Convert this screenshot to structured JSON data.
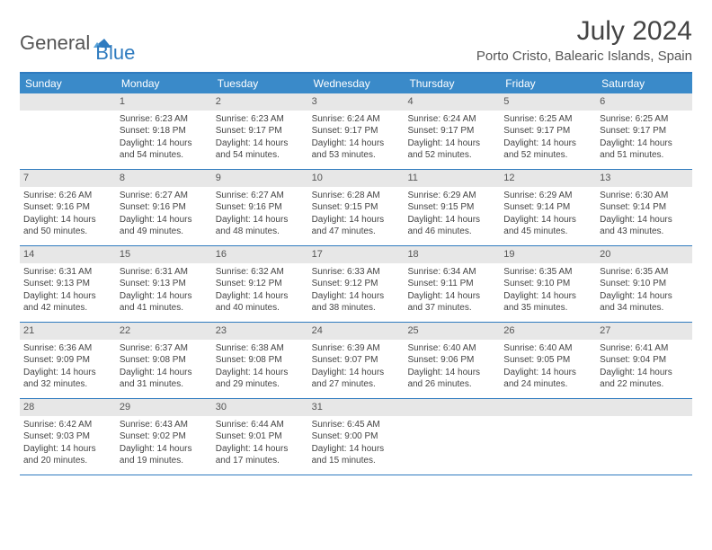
{
  "brand": {
    "word1": "General",
    "word2": "Blue"
  },
  "title": "July 2024",
  "location": "Porto Cristo, Balearic Islands, Spain",
  "colors": {
    "header_bar": "#3a8ac9",
    "border": "#2f7bbf",
    "daynum_bg": "#e7e7e7",
    "text": "#444444",
    "brand_gray": "#555555",
    "brand_blue": "#2f7bbf"
  },
  "day_headers": [
    "Sunday",
    "Monday",
    "Tuesday",
    "Wednesday",
    "Thursday",
    "Friday",
    "Saturday"
  ],
  "weeks": [
    [
      {
        "n": "",
        "sunrise": "",
        "sunset": "",
        "daylight": ""
      },
      {
        "n": "1",
        "sunrise": "6:23 AM",
        "sunset": "9:18 PM",
        "daylight": "14 hours and 54 minutes."
      },
      {
        "n": "2",
        "sunrise": "6:23 AM",
        "sunset": "9:17 PM",
        "daylight": "14 hours and 54 minutes."
      },
      {
        "n": "3",
        "sunrise": "6:24 AM",
        "sunset": "9:17 PM",
        "daylight": "14 hours and 53 minutes."
      },
      {
        "n": "4",
        "sunrise": "6:24 AM",
        "sunset": "9:17 PM",
        "daylight": "14 hours and 52 minutes."
      },
      {
        "n": "5",
        "sunrise": "6:25 AM",
        "sunset": "9:17 PM",
        "daylight": "14 hours and 52 minutes."
      },
      {
        "n": "6",
        "sunrise": "6:25 AM",
        "sunset": "9:17 PM",
        "daylight": "14 hours and 51 minutes."
      }
    ],
    [
      {
        "n": "7",
        "sunrise": "6:26 AM",
        "sunset": "9:16 PM",
        "daylight": "14 hours and 50 minutes."
      },
      {
        "n": "8",
        "sunrise": "6:27 AM",
        "sunset": "9:16 PM",
        "daylight": "14 hours and 49 minutes."
      },
      {
        "n": "9",
        "sunrise": "6:27 AM",
        "sunset": "9:16 PM",
        "daylight": "14 hours and 48 minutes."
      },
      {
        "n": "10",
        "sunrise": "6:28 AM",
        "sunset": "9:15 PM",
        "daylight": "14 hours and 47 minutes."
      },
      {
        "n": "11",
        "sunrise": "6:29 AM",
        "sunset": "9:15 PM",
        "daylight": "14 hours and 46 minutes."
      },
      {
        "n": "12",
        "sunrise": "6:29 AM",
        "sunset": "9:14 PM",
        "daylight": "14 hours and 45 minutes."
      },
      {
        "n": "13",
        "sunrise": "6:30 AM",
        "sunset": "9:14 PM",
        "daylight": "14 hours and 43 minutes."
      }
    ],
    [
      {
        "n": "14",
        "sunrise": "6:31 AM",
        "sunset": "9:13 PM",
        "daylight": "14 hours and 42 minutes."
      },
      {
        "n": "15",
        "sunrise": "6:31 AM",
        "sunset": "9:13 PM",
        "daylight": "14 hours and 41 minutes."
      },
      {
        "n": "16",
        "sunrise": "6:32 AM",
        "sunset": "9:12 PM",
        "daylight": "14 hours and 40 minutes."
      },
      {
        "n": "17",
        "sunrise": "6:33 AM",
        "sunset": "9:12 PM",
        "daylight": "14 hours and 38 minutes."
      },
      {
        "n": "18",
        "sunrise": "6:34 AM",
        "sunset": "9:11 PM",
        "daylight": "14 hours and 37 minutes."
      },
      {
        "n": "19",
        "sunrise": "6:35 AM",
        "sunset": "9:10 PM",
        "daylight": "14 hours and 35 minutes."
      },
      {
        "n": "20",
        "sunrise": "6:35 AM",
        "sunset": "9:10 PM",
        "daylight": "14 hours and 34 minutes."
      }
    ],
    [
      {
        "n": "21",
        "sunrise": "6:36 AM",
        "sunset": "9:09 PM",
        "daylight": "14 hours and 32 minutes."
      },
      {
        "n": "22",
        "sunrise": "6:37 AM",
        "sunset": "9:08 PM",
        "daylight": "14 hours and 31 minutes."
      },
      {
        "n": "23",
        "sunrise": "6:38 AM",
        "sunset": "9:08 PM",
        "daylight": "14 hours and 29 minutes."
      },
      {
        "n": "24",
        "sunrise": "6:39 AM",
        "sunset": "9:07 PM",
        "daylight": "14 hours and 27 minutes."
      },
      {
        "n": "25",
        "sunrise": "6:40 AM",
        "sunset": "9:06 PM",
        "daylight": "14 hours and 26 minutes."
      },
      {
        "n": "26",
        "sunrise": "6:40 AM",
        "sunset": "9:05 PM",
        "daylight": "14 hours and 24 minutes."
      },
      {
        "n": "27",
        "sunrise": "6:41 AM",
        "sunset": "9:04 PM",
        "daylight": "14 hours and 22 minutes."
      }
    ],
    [
      {
        "n": "28",
        "sunrise": "6:42 AM",
        "sunset": "9:03 PM",
        "daylight": "14 hours and 20 minutes."
      },
      {
        "n": "29",
        "sunrise": "6:43 AM",
        "sunset": "9:02 PM",
        "daylight": "14 hours and 19 minutes."
      },
      {
        "n": "30",
        "sunrise": "6:44 AM",
        "sunset": "9:01 PM",
        "daylight": "14 hours and 17 minutes."
      },
      {
        "n": "31",
        "sunrise": "6:45 AM",
        "sunset": "9:00 PM",
        "daylight": "14 hours and 15 minutes."
      },
      {
        "n": "",
        "sunrise": "",
        "sunset": "",
        "daylight": ""
      },
      {
        "n": "",
        "sunrise": "",
        "sunset": "",
        "daylight": ""
      },
      {
        "n": "",
        "sunrise": "",
        "sunset": "",
        "daylight": ""
      }
    ]
  ],
  "labels": {
    "sunrise": "Sunrise:",
    "sunset": "Sunset:",
    "daylight": "Daylight:"
  }
}
